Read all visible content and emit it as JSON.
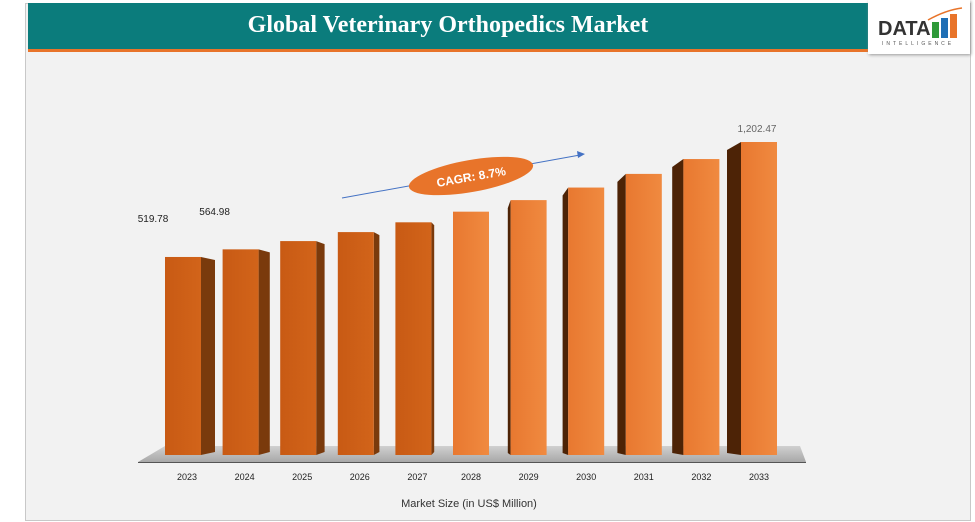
{
  "header": {
    "title": "Global Veterinary Orthopedics Market"
  },
  "logo": {
    "text": "DATA",
    "subtext": "INTELLIGENCE"
  },
  "colors": {
    "title_bar": "#0b7c7c",
    "accent": "#e8742a",
    "bar_front": "#c85a14",
    "bar_side": "#7a3a0c",
    "floor": "#b4b4b4"
  },
  "chart_data": {
    "type": "bar",
    "style": "3d-columns",
    "categories": [
      "2023",
      "2024",
      "2025",
      "2026",
      "2027",
      "2028",
      "2029",
      "2030",
      "2031",
      "2032",
      "2033"
    ],
    "values": [
      519.78,
      564.98,
      614.1,
      667.5,
      725.6,
      788.8,
      857.4,
      932.0,
      1013.1,
      1101.2,
      1202.47
    ],
    "data_labels": {
      "0": "519.78",
      "1": "564.98",
      "10": "1,202.47"
    },
    "xlabel": "Market Size (in US$ Million)",
    "ylabel": "",
    "grid": false,
    "annotation": "CAGR: 8.7%"
  }
}
